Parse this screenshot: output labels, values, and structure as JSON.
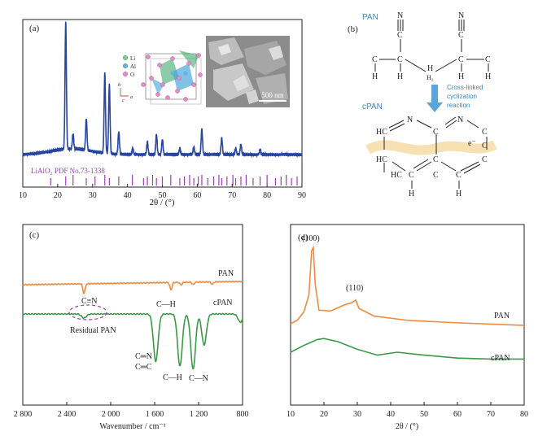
{
  "chart_data": [
    {
      "panel": "(a)",
      "type": "line",
      "xlabel": "2θ / (°)",
      "xlim": [
        10,
        90
      ],
      "xticks": [
        10,
        20,
        30,
        40,
        50,
        60,
        70,
        80,
        90
      ],
      "series_color": "#2545a0",
      "reference_color": "#9b3fb5",
      "peaks": [
        {
          "x": 22.3,
          "h": 1.0
        },
        {
          "x": 24.4,
          "h": 0.12
        },
        {
          "x": 28.2,
          "h": 0.25
        },
        {
          "x": 33.5,
          "h": 0.63
        },
        {
          "x": 34.8,
          "h": 0.55
        },
        {
          "x": 37.5,
          "h": 0.18
        },
        {
          "x": 41.5,
          "h": 0.05
        },
        {
          "x": 45.7,
          "h": 0.1
        },
        {
          "x": 48.3,
          "h": 0.16
        },
        {
          "x": 50.0,
          "h": 0.12
        },
        {
          "x": 55.0,
          "h": 0.05
        },
        {
          "x": 59.0,
          "h": 0.06
        },
        {
          "x": 61.3,
          "h": 0.2
        },
        {
          "x": 67.0,
          "h": 0.13
        },
        {
          "x": 71.0,
          "h": 0.05
        },
        {
          "x": 72.5,
          "h": 0.08
        },
        {
          "x": 78.0,
          "h": 0.04
        }
      ],
      "reference_label": "LiAlO₂ PDF No.73-1338",
      "reference_positions": [
        18.0,
        22.3,
        24.4,
        28.2,
        30.7,
        33.5,
        34.8,
        37.5,
        41.4,
        44.6,
        45.7,
        47.2,
        48.3,
        50.0,
        52.4,
        55.0,
        56.3,
        57.8,
        59.0,
        60.3,
        61.3,
        63.0,
        64.7,
        66.2,
        67.0,
        68.5,
        70.2,
        71.0,
        72.5,
        74.0,
        76.0,
        78.0,
        80.0,
        82.4,
        84.0,
        85.5,
        87.0,
        88.6
      ],
      "inset_legend": [
        "Li",
        "Al",
        "O"
      ],
      "inset_axis_labels": [
        "b",
        "a",
        "c"
      ],
      "scale_bar": "500 nm"
    },
    {
      "panel": "(c)",
      "type": "line",
      "xlabel": "Wavenumber / cm⁻¹",
      "xlim": [
        2800,
        800
      ],
      "xticks": [
        "2 800",
        "2 400",
        "2 000",
        "1 600",
        "1 200",
        "800"
      ],
      "series": [
        {
          "name": "PAN",
          "color": "#f08a3c",
          "bands": [
            {
              "x": 2243,
              "d": 12
            },
            {
              "x": 1452,
              "d": 9
            },
            {
              "x": 1360,
              "d": 3
            },
            {
              "x": 1250,
              "d": 3
            },
            {
              "x": 1075,
              "d": 3
            }
          ]
        },
        {
          "name": "cPAN",
          "color": "#3a9a48",
          "bands": [
            {
              "x": 2243,
              "d": 5
            },
            {
              "x": 1590,
              "d": 58
            },
            {
              "x": 1370,
              "d": 64
            },
            {
              "x": 1250,
              "d": 68
            },
            {
              "x": 1150,
              "d": 38
            },
            {
              "x": 820,
              "d": 10
            }
          ]
        }
      ],
      "annotations": [
        "C≡N",
        "C—H",
        "Residual PAN",
        "C═N",
        "C═C",
        "C—H",
        "C—N"
      ]
    },
    {
      "panel": "(d)",
      "type": "line",
      "xlabel": "2θ / (°)",
      "xlim": [
        10,
        80
      ],
      "xticks": [
        10,
        20,
        30,
        40,
        50,
        60,
        70,
        80
      ],
      "series": [
        {
          "name": "PAN",
          "color": "#f08a3c",
          "points": [
            [
              10,
              0.02
            ],
            [
              12,
              0.06
            ],
            [
              14,
              0.16
            ],
            [
              15.5,
              0.36
            ],
            [
              16.3,
              0.88
            ],
            [
              16.8,
              0.92
            ],
            [
              17.4,
              0.48
            ],
            [
              18.5,
              0.18
            ],
            [
              22,
              0.17
            ],
            [
              26,
              0.24
            ],
            [
              28.5,
              0.27
            ],
            [
              29.5,
              0.3
            ],
            [
              30.5,
              0.2
            ],
            [
              35,
              0.11
            ],
            [
              45,
              0.06
            ],
            [
              60,
              0.03
            ],
            [
              80,
              0.0
            ]
          ]
        },
        {
          "name": "cPAN",
          "color": "#3a9a48",
          "points": [
            [
              10,
              0.0
            ],
            [
              14,
              0.07
            ],
            [
              18,
              0.13
            ],
            [
              20,
              0.14
            ],
            [
              24,
              0.11
            ],
            [
              30,
              0.03
            ],
            [
              36,
              -0.03
            ],
            [
              42,
              0.0
            ],
            [
              50,
              -0.03
            ],
            [
              60,
              -0.06
            ],
            [
              70,
              -0.07
            ],
            [
              80,
              -0.07
            ]
          ]
        }
      ],
      "peak_labels": [
        "(100)",
        "(110)"
      ]
    }
  ],
  "scheme": {
    "panel": "(b)",
    "top_label": "PAN",
    "bottom_label": "cPAN",
    "arrow_text": [
      "Cross-linked",
      "cyclization",
      "reaction"
    ],
    "electron_label": "e⁻",
    "pan_atoms": [
      "N",
      "N",
      "C",
      "C",
      "C",
      "C",
      "C",
      "C",
      "H",
      "H",
      "H",
      "H",
      "H",
      "H₂"
    ],
    "cpan_atoms": [
      "HC",
      "N",
      "C",
      "N",
      "C",
      "C",
      "C",
      "C",
      "C",
      "HC",
      "HC",
      "C",
      "C",
      "H",
      "H"
    ]
  }
}
